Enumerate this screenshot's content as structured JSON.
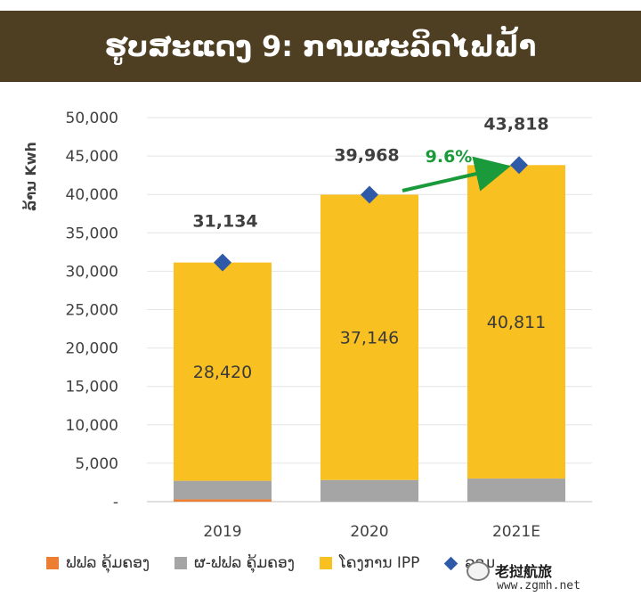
{
  "title": "ຮູບສະແດງ 9: ການຜະລິດໄຟຟ້າ",
  "colors": {
    "title_band": "#4e3e22",
    "edl": "#ed7d31",
    "edl_gen": "#a5a5a5",
    "ipp": "#f9c022",
    "total": "#2e5aa8",
    "growth_arrow": "#1a9a3a",
    "growth_label": "#1a9a3a"
  },
  "chart_data": {
    "type": "bar",
    "stacked": true,
    "title": "",
    "xlabel": "",
    "ylabel": "ລ້ານ Kwh",
    "categories": [
      "2019",
      "2020",
      "2021E"
    ],
    "ylim": [
      0,
      50000
    ],
    "yticks": [
      "-",
      "5,000",
      "10,000",
      "15,000",
      "20,000",
      "25,000",
      "30,000",
      "35,000",
      "40,000",
      "45,000",
      "50,000"
    ],
    "series": [
      {
        "name": "ຟຟລ ຄຸ້ມຄອງ",
        "values": [
          300,
          0,
          0
        ]
      },
      {
        "name": "ຜ-ຟຟລ ຄຸ້ມຄອງ",
        "values": [
          2414,
          2822,
          3007
        ]
      },
      {
        "name": "ໂຄງການ IPP",
        "values": [
          28420,
          37146,
          40811
        ]
      }
    ],
    "total": {
      "name": "ລວມ",
      "values": [
        31134,
        39968,
        43818
      ]
    },
    "data_labels": {
      "ipp": [
        "28,420",
        "37,146",
        "40,811"
      ],
      "total": [
        "31,134",
        "39,968",
        "43,818"
      ]
    },
    "annotation": {
      "text": "9.6%",
      "from": "2020",
      "to": "2021E"
    },
    "grid": true,
    "legend_position": "bottom"
  },
  "legend": [
    {
      "label": "ຟຟລ ຄຸ້ມຄອງ",
      "color": "#ed7d31",
      "marker": "square"
    },
    {
      "label": "ຜ-ຟຟລ ຄຸ້ມຄອງ",
      "color": "#a5a5a5",
      "marker": "square"
    },
    {
      "label": "ໂຄງການ IPP",
      "color": "#f9c022",
      "marker": "square"
    },
    {
      "label": "ລວມ",
      "color": "#2e5aa8",
      "marker": "diamond"
    }
  ],
  "watermark": {
    "name": "老挝航旅",
    "url": "www.zgmh.net",
    "icon": "wechat-icon"
  }
}
